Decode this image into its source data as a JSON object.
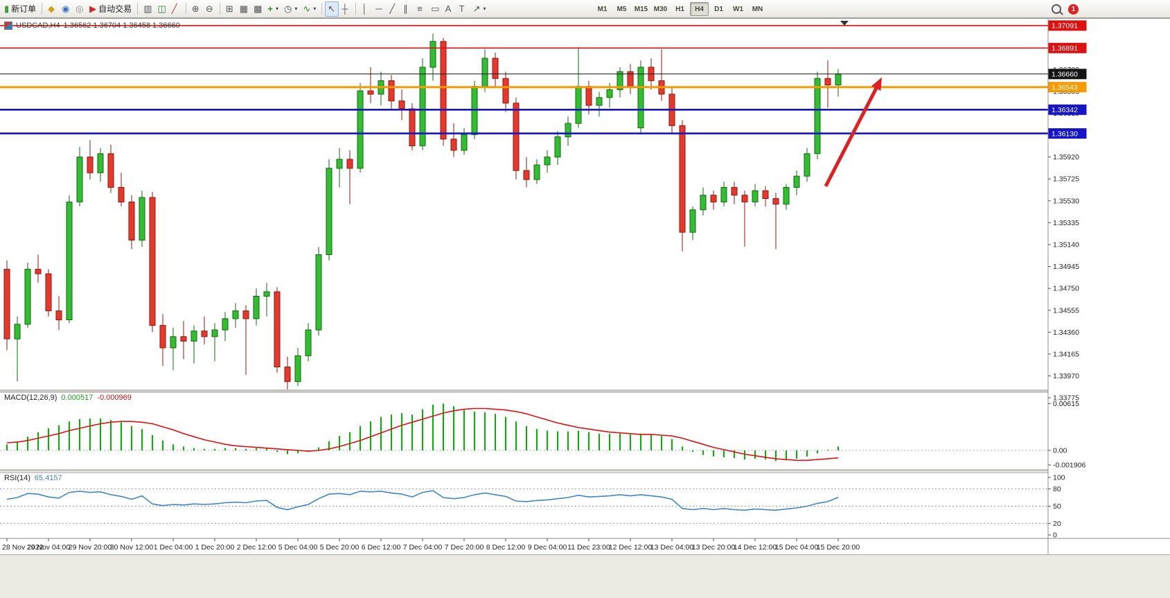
{
  "toolbar": {
    "notification_badge": "1",
    "timeframes": [
      "M1",
      "M5",
      "M15",
      "M30",
      "H1",
      "H4",
      "D1",
      "W1",
      "MN"
    ],
    "active_timeframe": "H4",
    "items": [
      {
        "name": "new-order-button",
        "icon": "new-order-icon",
        "glyph": "▮",
        "label": "新订单"
      },
      {
        "type": "sep"
      },
      {
        "name": "charts-button",
        "icon": "chart-windows-icon",
        "glyph": "◆"
      },
      {
        "name": "profiles-button",
        "icon": "profiles-icon",
        "glyph": "◉"
      },
      {
        "name": "data-window-button",
        "icon": "data-window-icon",
        "glyph": "◎"
      },
      {
        "name": "autotrading-button",
        "icon": "autotrading-icon",
        "glyph": "▶",
        "label": "自动交易"
      },
      {
        "type": "sep"
      },
      {
        "name": "bar-chart-button",
        "icon": "bar-chart-icon",
        "glyph": "▥"
      },
      {
        "name": "candlestick-chart-button",
        "icon": "candlestick-icon",
        "glyph": "◫"
      },
      {
        "name": "line-chart-button",
        "icon": "line-chart-icon",
        "glyph": "╱"
      },
      {
        "type": "sep"
      },
      {
        "name": "zoom-in-button",
        "icon": "zoom-in-icon",
        "glyph": "⊕"
      },
      {
        "name": "zoom-out-button",
        "icon": "zoom-out-icon",
        "glyph": "⊖"
      },
      {
        "type": "sep"
      },
      {
        "name": "tile-windows-button",
        "icon": "tile-windows-icon",
        "glyph": "⊞"
      },
      {
        "name": "arrange-windows-button",
        "icon": "arrange-windows-icon",
        "glyph": "▦"
      },
      {
        "name": "cascade-windows-button",
        "icon": "cascade-windows-icon",
        "glyph": "▩"
      },
      {
        "name": "new-chart-button",
        "icon": "new-chart-icon",
        "glyph": "+",
        "dropdown": true
      },
      {
        "name": "periods-button",
        "icon": "clock-icon",
        "glyph": "◷",
        "dropdown": true
      },
      {
        "name": "indicators-button",
        "icon": "indicators-icon",
        "glyph": "∿",
        "dropdown": true
      },
      {
        "type": "sep"
      },
      {
        "name": "cursor-button",
        "icon": "cursor-icon",
        "glyph": "↖",
        "active": true
      },
      {
        "name": "crosshair-button",
        "icon": "crosshair-icon",
        "glyph": "┼"
      },
      {
        "type": "sep"
      },
      {
        "name": "vertical-line-button",
        "icon": "vertical-line-icon",
        "glyph": "│"
      },
      {
        "name": "horizontal-line-button",
        "icon": "horizontal-line-icon",
        "glyph": "─"
      },
      {
        "name": "trendline-button",
        "icon": "trendline-icon",
        "glyph": "╱"
      },
      {
        "name": "channel-button",
        "icon": "channel-icon",
        "glyph": "∥"
      },
      {
        "name": "fibonacci-button",
        "icon": "fibonacci-icon",
        "glyph": "≡"
      },
      {
        "name": "shapes-button",
        "icon": "shapes-icon",
        "glyph": "▭"
      },
      {
        "name": "text-button",
        "icon": "text-icon",
        "glyph": "A"
      },
      {
        "name": "text-label-button",
        "icon": "text-label-icon",
        "glyph": "T"
      },
      {
        "name": "arrows-button",
        "icon": "arrow-tools-icon",
        "glyph": "↗",
        "dropdown": true
      }
    ]
  },
  "chart": {
    "symbol": "USDCAD,H4",
    "ohlc": "1.36562 1.36704 1.36458 1.36660",
    "macd_label": "MACD(12,26,9)",
    "macd_value_main": "0.000517",
    "macd_value_signal": "-0.000969",
    "rsi_label": "RSI(14)",
    "rsi_value": "65.4157"
  },
  "chart_data": {
    "type": "candlestick",
    "symbol": "USDCAD",
    "timeframe": "H4",
    "current_price": 1.3666,
    "y_min": 1.33775,
    "y_max": 1.3712,
    "colors": {
      "up_fill": "#33bd33",
      "up_stroke": "#0b6b0b",
      "down_fill": "#e6392b",
      "down_stroke": "#8f150a",
      "macd": "#00b400",
      "signal": "#e01010",
      "rsi": "#3f86c7",
      "arrow": "#e02020"
    },
    "price_axis": [
      "1.36700",
      "1.36505",
      "1.36310",
      "1.36115",
      "1.35920",
      "1.35725",
      "1.35530",
      "1.35335",
      "1.35140",
      "1.34945",
      "1.34750",
      "1.34555",
      "1.34360",
      "1.34165",
      "1.33970",
      "1.33775"
    ],
    "hlines": [
      {
        "price": 1.37091,
        "label": "1.37091",
        "color": "#dd1111",
        "width": 1.6
      },
      {
        "price": 1.36891,
        "label": "1.36891",
        "color": "#dd1111",
        "width": 1.6
      },
      {
        "price": 1.3666,
        "label": "1.36660",
        "color": "#151515",
        "width": 1
      },
      {
        "price": 1.36543,
        "label": "1.36543",
        "color": "#f59b00",
        "width": 3
      },
      {
        "price": 1.36342,
        "label": "1.36342",
        "color": "#1414c8",
        "width": 2.6
      },
      {
        "price": 1.3613,
        "label": "1.36130",
        "color": "#1414c8",
        "width": 2.6
      }
    ],
    "time_labels": [
      "28 Nov 2022",
      "29 Nov 04:00",
      "29 Nov 20:00",
      "30 Nov 12:00",
      "1 Dec 04:00",
      "1 Dec 20:00",
      "2 Dec 12:00",
      "5 Dec 04:00",
      "5 Dec 20:00",
      "6 Dec 12:00",
      "7 Dec 04:00",
      "7 Dec 20:00",
      "8 Dec 12:00",
      "9 Dec 04:00",
      "11 Dec 23:00",
      "12 Dec 12:00",
      "13 Dec 04:00",
      "13 Dec 20:00",
      "14 Dec 12:00",
      "15 Dec 04:00",
      "15 Dec 20:00"
    ],
    "candles": [
      [
        1.3492,
        1.35,
        1.342,
        1.343
      ],
      [
        1.343,
        1.345,
        1.3392,
        1.3443
      ],
      [
        1.3443,
        1.3498,
        1.344,
        1.3492
      ],
      [
        1.3492,
        1.3505,
        1.348,
        1.3488
      ],
      [
        1.3488,
        1.3492,
        1.345,
        1.3455
      ],
      [
        1.3455,
        1.3468,
        1.3438,
        1.3447
      ],
      [
        1.3447,
        1.3558,
        1.3444,
        1.3552
      ],
      [
        1.3552,
        1.3601,
        1.3548,
        1.3592
      ],
      [
        1.3592,
        1.3607,
        1.3572,
        1.3578
      ],
      [
        1.3578,
        1.36,
        1.357,
        1.3595
      ],
      [
        1.3595,
        1.3603,
        1.356,
        1.3565
      ],
      [
        1.3565,
        1.3578,
        1.3548,
        1.3552
      ],
      [
        1.3552,
        1.3558,
        1.351,
        1.3518
      ],
      [
        1.3518,
        1.3562,
        1.3512,
        1.3556
      ],
      [
        1.3556,
        1.3561,
        1.3436,
        1.3442
      ],
      [
        1.3442,
        1.3452,
        1.3406,
        1.3422
      ],
      [
        1.3422,
        1.344,
        1.3402,
        1.3432
      ],
      [
        1.3432,
        1.3446,
        1.3412,
        1.3428
      ],
      [
        1.3428,
        1.3442,
        1.3408,
        1.3437
      ],
      [
        1.3437,
        1.345,
        1.3425,
        1.3432
      ],
      [
        1.3432,
        1.3444,
        1.341,
        1.3438
      ],
      [
        1.3438,
        1.3454,
        1.3428,
        1.3448
      ],
      [
        1.3448,
        1.3462,
        1.344,
        1.3455
      ],
      [
        1.3455,
        1.346,
        1.3398,
        1.3448
      ],
      [
        1.3448,
        1.3475,
        1.3442,
        1.3468
      ],
      [
        1.3468,
        1.348,
        1.345,
        1.3472
      ],
      [
        1.3472,
        1.3476,
        1.34,
        1.3405
      ],
      [
        1.3405,
        1.3414,
        1.3385,
        1.3392
      ],
      [
        1.3392,
        1.3422,
        1.3388,
        1.3415
      ],
      [
        1.3415,
        1.3444,
        1.341,
        1.3438
      ],
      [
        1.3438,
        1.3512,
        1.3433,
        1.3505
      ],
      [
        1.3505,
        1.359,
        1.35,
        1.3582
      ],
      [
        1.3582,
        1.36,
        1.3565,
        1.359
      ],
      [
        1.359,
        1.3598,
        1.355,
        1.3582
      ],
      [
        1.3582,
        1.3658,
        1.3578,
        1.3651
      ],
      [
        1.3651,
        1.3672,
        1.364,
        1.3648
      ],
      [
        1.3648,
        1.3668,
        1.3638,
        1.366
      ],
      [
        1.366,
        1.3665,
        1.3635,
        1.3642
      ],
      [
        1.3642,
        1.3652,
        1.3625,
        1.3635
      ],
      [
        1.3635,
        1.364,
        1.3598,
        1.3602
      ],
      [
        1.3602,
        1.368,
        1.3598,
        1.3672
      ],
      [
        1.3672,
        1.3702,
        1.366,
        1.3695
      ],
      [
        1.3695,
        1.3698,
        1.3602,
        1.3608
      ],
      [
        1.3608,
        1.3622,
        1.3592,
        1.3598
      ],
      [
        1.3598,
        1.3618,
        1.3594,
        1.3612
      ],
      [
        1.3612,
        1.366,
        1.3608,
        1.3655
      ],
      [
        1.3655,
        1.3688,
        1.365,
        1.368
      ],
      [
        1.368,
        1.3685,
        1.3655,
        1.3662
      ],
      [
        1.3662,
        1.3668,
        1.3632,
        1.364
      ],
      [
        1.364,
        1.3645,
        1.3572,
        1.358
      ],
      [
        1.358,
        1.3592,
        1.3565,
        1.3572
      ],
      [
        1.3572,
        1.359,
        1.3568,
        1.3585
      ],
      [
        1.3585,
        1.3598,
        1.3578,
        1.3592
      ],
      [
        1.3592,
        1.3615,
        1.3585,
        1.361
      ],
      [
        1.361,
        1.3628,
        1.3602,
        1.3622
      ],
      [
        1.3622,
        1.369,
        1.3618,
        1.3655
      ],
      [
        1.3655,
        1.366,
        1.363,
        1.3638
      ],
      [
        1.3638,
        1.365,
        1.3628,
        1.3645
      ],
      [
        1.3645,
        1.3658,
        1.3636,
        1.3652
      ],
      [
        1.3652,
        1.3672,
        1.3645,
        1.3668
      ],
      [
        1.3668,
        1.3675,
        1.3648,
        1.3655
      ],
      [
        1.3618,
        1.3678,
        1.3612,
        1.3672
      ],
      [
        1.3672,
        1.368,
        1.3652,
        1.366
      ],
      [
        1.366,
        1.3688,
        1.3642,
        1.3648
      ],
      [
        1.3648,
        1.3655,
        1.3612,
        1.362
      ],
      [
        1.362,
        1.3625,
        1.3508,
        1.3525
      ],
      [
        1.3525,
        1.3548,
        1.3518,
        1.3545
      ],
      [
        1.3545,
        1.3565,
        1.354,
        1.3558
      ],
      [
        1.3558,
        1.3562,
        1.3545,
        1.3552
      ],
      [
        1.3552,
        1.357,
        1.3548,
        1.3565
      ],
      [
        1.3565,
        1.357,
        1.355,
        1.3558
      ],
      [
        1.3558,
        1.3562,
        1.3512,
        1.3552
      ],
      [
        1.3552,
        1.3568,
        1.3548,
        1.3562
      ],
      [
        1.3562,
        1.3566,
        1.3548,
        1.3555
      ],
      [
        1.3555,
        1.356,
        1.351,
        1.355
      ],
      [
        1.355,
        1.3568,
        1.3545,
        1.3565
      ],
      [
        1.3565,
        1.358,
        1.3558,
        1.3575
      ],
      [
        1.3575,
        1.36,
        1.357,
        1.3595
      ],
      [
        1.3595,
        1.3668,
        1.359,
        1.3662
      ],
      [
        1.3662,
        1.3678,
        1.3636,
        1.36562
      ],
      [
        1.36562,
        1.36704,
        1.36458,
        1.3666
      ]
    ],
    "macd": {
      "histogram": [
        0.0008,
        0.0012,
        0.0018,
        0.0024,
        0.0029,
        0.0033,
        0.0038,
        0.0041,
        0.0042,
        0.0042,
        0.004,
        0.0037,
        0.0032,
        0.0028,
        0.002,
        0.0013,
        0.0008,
        0.0005,
        0.0003,
        0.0002,
        0.0002,
        0.0003,
        0.0003,
        0.0002,
        0.0003,
        0.0003,
        -0.0002,
        -0.0005,
        -0.0004,
        -0.0002,
        0.0004,
        0.0012,
        0.0019,
        0.0024,
        0.0032,
        0.0038,
        0.0044,
        0.0047,
        0.0049,
        0.0047,
        0.0054,
        0.006,
        0.00615,
        0.0058,
        0.0053,
        0.0051,
        0.005,
        0.0048,
        0.0044,
        0.0038,
        0.0032,
        0.0028,
        0.0026,
        0.0025,
        0.0025,
        0.0026,
        0.0024,
        0.0022,
        0.0022,
        0.0022,
        0.0021,
        0.0022,
        0.0021,
        0.0019,
        0.0015,
        0.0005,
        -0.0002,
        -0.0006,
        -0.0008,
        -0.0009,
        -0.001,
        -0.0012,
        -0.0011,
        -0.0012,
        -0.0014,
        -0.0013,
        -0.0011,
        -0.0008,
        -0.0004,
        0.0001,
        0.000517
      ],
      "signal": [
        0.001,
        0.0011,
        0.0013,
        0.0016,
        0.0019,
        0.0022,
        0.0026,
        0.0029,
        0.0032,
        0.0035,
        0.0037,
        0.0038,
        0.0038,
        0.0037,
        0.0035,
        0.0031,
        0.0027,
        0.0022,
        0.0018,
        0.0014,
        0.0011,
        0.0008,
        0.0006,
        0.0005,
        0.0004,
        0.0003,
        0.0002,
        0.0001,
        0.0,
        -0.0001,
        0.0,
        0.0002,
        0.0005,
        0.0009,
        0.0013,
        0.0018,
        0.0023,
        0.0028,
        0.0033,
        0.0037,
        0.0041,
        0.0045,
        0.0049,
        0.0052,
        0.0054,
        0.0055,
        0.0055,
        0.0054,
        0.0053,
        0.0051,
        0.0048,
        0.0044,
        0.004,
        0.0036,
        0.0033,
        0.003,
        0.0028,
        0.0026,
        0.0024,
        0.0023,
        0.0022,
        0.0021,
        0.0021,
        0.002,
        0.0019,
        0.0016,
        0.0012,
        0.0008,
        0.0004,
        0.0001,
        -0.0002,
        -0.0005,
        -0.0007,
        -0.0009,
        -0.0011,
        -0.0012,
        -0.0013,
        -0.0013,
        -0.0012,
        -0.0011,
        -0.000969
      ],
      "scale": [
        {
          "value": 0.00615,
          "label": "0.00615"
        },
        {
          "value": 0,
          "label": "0.00"
        },
        {
          "value": -0.001906,
          "label": "-0.001906"
        }
      ]
    },
    "rsi": {
      "values": [
        62,
        65,
        72,
        71,
        66,
        64,
        74,
        76,
        74,
        75,
        70,
        67,
        62,
        68,
        54,
        51,
        53,
        52,
        54,
        53,
        54,
        56,
        57,
        56,
        59,
        60,
        48,
        44,
        49,
        53,
        63,
        71,
        72,
        70,
        76,
        75,
        76,
        73,
        71,
        66,
        74,
        77,
        65,
        63,
        65,
        70,
        73,
        70,
        67,
        59,
        58,
        60,
        61,
        63,
        65,
        69,
        66,
        67,
        68,
        70,
        68,
        70,
        68,
        66,
        62,
        46,
        44,
        46,
        44,
        46,
        44,
        43,
        45,
        44,
        43,
        45,
        47,
        50,
        55,
        58,
        65.4157
      ],
      "levels": [
        80,
        50,
        20
      ],
      "scale": [
        {
          "value": 100,
          "label": "100"
        },
        {
          "value": 80,
          "label": "80"
        },
        {
          "value": 50,
          "label": "50"
        },
        {
          "value": 20,
          "label": "20"
        },
        {
          "value": 0,
          "label": "0"
        }
      ]
    },
    "arrow": {
      "from_index": 78.8,
      "from_price": 1.3566,
      "to_index": 84.2,
      "to_price": 1.3663,
      "color": "#e02020"
    },
    "shift_marker_index": 80.6
  }
}
